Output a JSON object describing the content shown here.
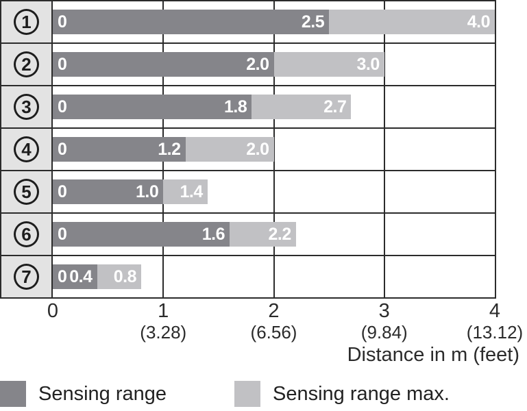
{
  "colors": {
    "bar_dark": "#85858a",
    "bar_light": "#c1c1c4",
    "row_header_bg": "#e3e3e3",
    "border": "#2b2b2b",
    "bar_label": "#ffffff"
  },
  "rows": [
    {
      "symbol": "1",
      "zero_label": "0",
      "sensing_label": "2.5",
      "max_label": "4.0",
      "sensing_m": 2.5,
      "max_m": 4.0
    },
    {
      "symbol": "2",
      "zero_label": "0",
      "sensing_label": "2.0",
      "max_label": "3.0",
      "sensing_m": 2.0,
      "max_m": 3.0
    },
    {
      "symbol": "3",
      "zero_label": "0",
      "sensing_label": "1.8",
      "max_label": "2.7",
      "sensing_m": 1.8,
      "max_m": 2.7
    },
    {
      "symbol": "4",
      "zero_label": "0",
      "sensing_label": "1.2",
      "max_label": "2.0",
      "sensing_m": 1.2,
      "max_m": 2.0
    },
    {
      "symbol": "5",
      "zero_label": "0",
      "sensing_label": "1.0",
      "max_label": "1.4",
      "sensing_m": 1.0,
      "max_m": 1.4
    },
    {
      "symbol": "6",
      "zero_label": "0",
      "sensing_label": "1.6",
      "max_label": "2.2",
      "sensing_m": 1.6,
      "max_m": 2.2
    },
    {
      "symbol": "7",
      "zero_label": "0",
      "sensing_label": "0.4",
      "max_label": "0.8",
      "sensing_m": 0.4,
      "max_m": 0.8
    }
  ],
  "axis": {
    "ticks": [
      {
        "m": "0",
        "feet": ""
      },
      {
        "m": "1",
        "feet": "(3.28)"
      },
      {
        "m": "2",
        "feet": "(6.56)"
      },
      {
        "m": "3",
        "feet": "(9.84)"
      },
      {
        "m": "4",
        "feet": "(13.12)"
      }
    ],
    "label": "Distance in m (feet)",
    "max_m": 4
  },
  "legend": {
    "items": [
      {
        "label": "Sensing range",
        "swatch": "dark"
      },
      {
        "label": "Sensing range max.",
        "swatch": "light"
      }
    ]
  },
  "chart_data": {
    "type": "bar",
    "orientation": "horizontal",
    "title": "",
    "categories": [
      "①",
      "②",
      "③",
      "④",
      "⑤",
      "⑥",
      "⑦"
    ],
    "series": [
      {
        "name": "Sensing range",
        "values": [
          2.5,
          2.0,
          1.8,
          1.2,
          1.0,
          1.6,
          0.4
        ]
      },
      {
        "name": "Sensing range max.",
        "values": [
          4.0,
          3.0,
          2.7,
          2.0,
          1.4,
          2.2,
          0.8
        ]
      }
    ],
    "xlabel": "Distance in m (feet)",
    "xlim": [
      0,
      4
    ],
    "xticks_m": [
      0,
      1,
      2,
      3,
      4
    ],
    "xticks_feet": [
      null,
      3.28,
      6.56,
      9.84,
      13.12
    ],
    "grid": true,
    "legend_position": "bottom"
  }
}
